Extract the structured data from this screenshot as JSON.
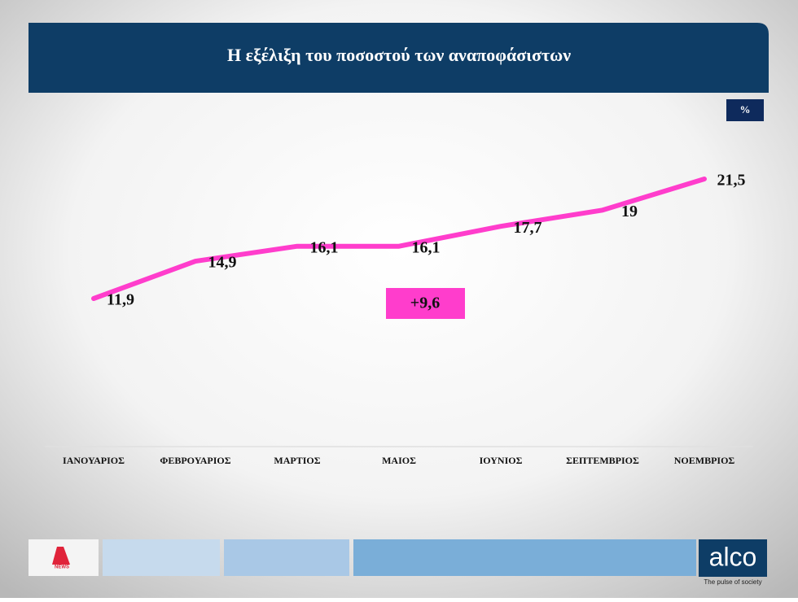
{
  "chart_data": {
    "type": "line",
    "title": "Η εξέλιξη του ποσοστού των αναποφάσιστων",
    "unit": "%",
    "categories": [
      "ΙΑΝΟΥΑΡΙΟΣ",
      "ΦΕΒΡΟΥΑΡΙΟΣ",
      "ΜΑΡΤΙΟΣ",
      "ΜΑΙΟΣ",
      "ΙΟΥΝΙΟΣ",
      "ΣΕΠΤΕΜΒΡΙΟΣ",
      "ΝΟΕΜΒΡΙΟΣ"
    ],
    "values": [
      11.9,
      14.9,
      16.1,
      16.1,
      17.7,
      19,
      21.5
    ],
    "value_labels": [
      "11,9",
      "14,9",
      "16,1",
      "16,1",
      "17,7",
      "19",
      "21,5"
    ],
    "color": "#ff3dcc",
    "annotation": "+9,6"
  },
  "branding": {
    "logo": "alco",
    "tagline": "The pulse of society",
    "news_logo": "NEWS"
  }
}
